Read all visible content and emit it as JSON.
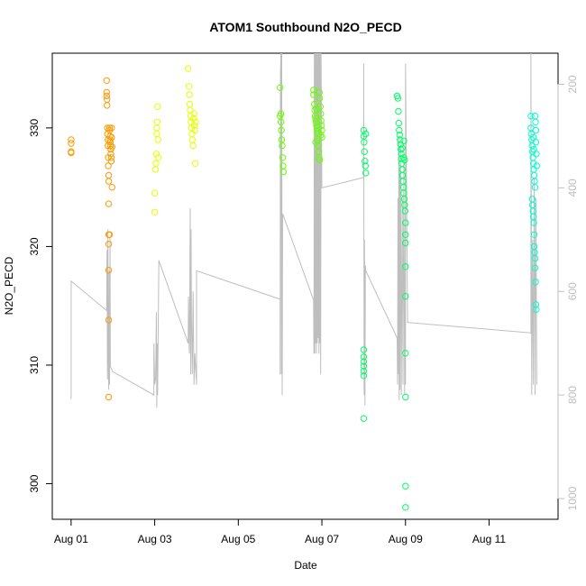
{
  "chart_data": {
    "type": "scatter",
    "title": "ATOM1 Southbound N2O_PECD",
    "xlabel": "Date",
    "ylabel": "N2O_PECD",
    "x_ticks": [
      "Aug 01",
      "Aug 03",
      "Aug 05",
      "Aug 07",
      "Aug 09",
      "Aug 11"
    ],
    "x_tick_days": [
      1,
      3,
      5,
      7,
      9,
      11
    ],
    "xlim_days": [
      0.55,
      12.65
    ],
    "y_ticks": [
      300,
      310,
      320,
      330
    ],
    "ylim": [
      297,
      336.3
    ],
    "y2_ticks": [
      200,
      400,
      600,
      800,
      1000
    ],
    "y2lim": [
      1040,
      140
    ],
    "y2_reversed": true,
    "grid": false,
    "colors": {
      "flight_1": "#ff9900",
      "flight_2": "#e6ff00",
      "flight_3": "#66ff00",
      "flight_4": "#00ff66",
      "flight_5": "#00ffcc",
      "altitude_trace": "#bebebe"
    },
    "series": [
      {
        "key": "flight_1",
        "color": "#ff9900",
        "points": [
          [
            1.0,
            329.0
          ],
          [
            1.0,
            328.7
          ],
          [
            1.0,
            328.0
          ],
          [
            1.0,
            327.9
          ],
          [
            1.85,
            334.0
          ],
          [
            1.85,
            333.0
          ],
          [
            1.85,
            332.7
          ],
          [
            1.86,
            332.4
          ],
          [
            1.86,
            331.9
          ],
          [
            1.87,
            330.0
          ],
          [
            1.87,
            329.5
          ],
          [
            1.88,
            329.0
          ],
          [
            1.88,
            328.5
          ],
          [
            1.89,
            327.5
          ],
          [
            1.89,
            326.8
          ],
          [
            1.9,
            326.0
          ],
          [
            1.9,
            325.5
          ],
          [
            1.9,
            323.6
          ],
          [
            1.9,
            321.0
          ],
          [
            1.9,
            320.2
          ],
          [
            1.9,
            318.0
          ],
          [
            1.9,
            313.8
          ],
          [
            1.9,
            307.3
          ],
          [
            1.92,
            330.0
          ],
          [
            1.92,
            329.8
          ],
          [
            1.93,
            329.3
          ],
          [
            1.93,
            329.0
          ],
          [
            1.94,
            328.8
          ],
          [
            1.94,
            328.5
          ],
          [
            1.95,
            328.2
          ],
          [
            1.95,
            327.8
          ],
          [
            1.96,
            327.5
          ],
          [
            1.96,
            327.2
          ],
          [
            1.97,
            330.0
          ],
          [
            1.97,
            329.2
          ],
          [
            1.98,
            328.4
          ],
          [
            1.98,
            325.0
          ],
          [
            1.92,
            321.0
          ]
        ]
      },
      {
        "key": "flight_2",
        "color": "#e6ff00",
        "points": [
          [
            3.0,
            322.9
          ],
          [
            3.0,
            324.5
          ],
          [
            3.02,
            326.5
          ],
          [
            3.03,
            327.0
          ],
          [
            3.04,
            327.8
          ],
          [
            3.05,
            329.5
          ],
          [
            3.05,
            330.0
          ],
          [
            3.06,
            330.5
          ],
          [
            3.07,
            331.8
          ],
          [
            3.08,
            327.5
          ],
          [
            3.08,
            329.0
          ],
          [
            3.8,
            335.0
          ],
          [
            3.82,
            333.5
          ],
          [
            3.83,
            332.8
          ],
          [
            3.84,
            332.0
          ],
          [
            3.85,
            331.5
          ],
          [
            3.86,
            331.0
          ],
          [
            3.87,
            330.5
          ],
          [
            3.88,
            330.0
          ],
          [
            3.89,
            329.5
          ],
          [
            3.9,
            329.0
          ],
          [
            3.92,
            328.5
          ],
          [
            3.93,
            330.8
          ],
          [
            3.94,
            331.2
          ],
          [
            3.95,
            330.2
          ],
          [
            3.96,
            329.8
          ],
          [
            3.97,
            327.0
          ],
          [
            3.98,
            330.5
          ]
        ]
      },
      {
        "key": "flight_3",
        "color": "#66ff00",
        "points": [
          [
            6.0,
            333.4
          ],
          [
            6.0,
            331.0
          ],
          [
            6.02,
            330.5
          ],
          [
            6.03,
            329.8
          ],
          [
            6.04,
            329.0
          ],
          [
            6.05,
            328.5
          ],
          [
            6.06,
            327.5
          ],
          [
            6.07,
            326.8
          ],
          [
            6.08,
            326.3
          ],
          [
            6.02,
            331.2
          ],
          [
            6.8,
            333.2
          ],
          [
            6.8,
            332.8
          ],
          [
            6.82,
            332.0
          ],
          [
            6.83,
            331.5
          ],
          [
            6.84,
            331.0
          ],
          [
            6.85,
            330.8
          ],
          [
            6.86,
            330.5
          ],
          [
            6.87,
            330.2
          ],
          [
            6.88,
            330.0
          ],
          [
            6.89,
            329.7
          ],
          [
            6.9,
            329.5
          ],
          [
            6.9,
            329.0
          ],
          [
            6.91,
            328.5
          ],
          [
            6.92,
            328.0
          ],
          [
            6.93,
            327.5
          ],
          [
            6.94,
            333.0
          ],
          [
            6.95,
            332.5
          ],
          [
            6.96,
            331.8
          ],
          [
            6.97,
            331.2
          ],
          [
            6.98,
            330.6
          ],
          [
            6.99,
            330.2
          ],
          [
            7.0,
            329.8
          ],
          [
            7.0,
            329.2
          ],
          [
            6.85,
            328.8
          ],
          [
            6.87,
            331.6
          ],
          [
            6.95,
            327.3
          ],
          [
            6.97,
            329.4
          ]
        ]
      },
      {
        "key": "flight_4",
        "color": "#00ff66",
        "points": [
          [
            8.0,
            329.8
          ],
          [
            8.0,
            329.3
          ],
          [
            8.01,
            328.8
          ],
          [
            8.02,
            328.0
          ],
          [
            8.03,
            327.2
          ],
          [
            8.04,
            326.8
          ],
          [
            8.05,
            326.2
          ],
          [
            8.0,
            311.3
          ],
          [
            8.0,
            310.7
          ],
          [
            8.0,
            310.3
          ],
          [
            8.0,
            309.9
          ],
          [
            8.0,
            309.5
          ],
          [
            8.0,
            309.1
          ],
          [
            8.0,
            305.5
          ],
          [
            8.05,
            329.5
          ],
          [
            8.8,
            332.7
          ],
          [
            8.82,
            332.5
          ],
          [
            8.83,
            331.4
          ],
          [
            8.84,
            330.4
          ],
          [
            8.85,
            329.8
          ],
          [
            8.86,
            329.4
          ],
          [
            8.87,
            329.0
          ],
          [
            8.88,
            328.6
          ],
          [
            8.89,
            328.2
          ],
          [
            8.9,
            327.8
          ],
          [
            8.9,
            327.4
          ],
          [
            8.91,
            327.0
          ],
          [
            8.92,
            326.5
          ],
          [
            8.93,
            326.0
          ],
          [
            8.94,
            325.5
          ],
          [
            8.95,
            325.0
          ],
          [
            8.96,
            324.5
          ],
          [
            8.97,
            324.0
          ],
          [
            8.98,
            323.5
          ],
          [
            8.99,
            323.0
          ],
          [
            9.0,
            322.0
          ],
          [
            9.0,
            321.0
          ],
          [
            9.0,
            320.3
          ],
          [
            9.0,
            318.3
          ],
          [
            9.0,
            315.8
          ],
          [
            9.0,
            311.0
          ],
          [
            9.0,
            307.3
          ],
          [
            9.0,
            299.8
          ],
          [
            9.0,
            298.0
          ],
          [
            8.95,
            327.5
          ],
          [
            8.98,
            327.3
          ],
          [
            8.92,
            328.3
          ],
          [
            8.96,
            328.9
          ]
        ]
      },
      {
        "key": "flight_5",
        "color": "#00ffcc",
        "points": [
          [
            12.0,
            331.0
          ],
          [
            12.0,
            330.0
          ],
          [
            12.01,
            329.5
          ],
          [
            12.02,
            329.0
          ],
          [
            12.03,
            328.5
          ],
          [
            12.04,
            328.0
          ],
          [
            12.05,
            327.5
          ],
          [
            12.06,
            327.0
          ],
          [
            12.07,
            326.5
          ],
          [
            12.08,
            326.0
          ],
          [
            12.09,
            325.5
          ],
          [
            12.1,
            325.0
          ],
          [
            12.1,
            331.0
          ],
          [
            12.11,
            330.5
          ],
          [
            12.12,
            329.8
          ],
          [
            12.12,
            328.8
          ],
          [
            12.13,
            327.8
          ],
          [
            12.14,
            326.8
          ],
          [
            12.03,
            324.0
          ],
          [
            12.04,
            323.5
          ],
          [
            12.05,
            323.0
          ],
          [
            12.06,
            322.5
          ],
          [
            12.07,
            322.0
          ],
          [
            12.08,
            321.0
          ],
          [
            12.08,
            320.0
          ],
          [
            12.09,
            319.5
          ],
          [
            12.1,
            319.0
          ],
          [
            12.1,
            318.2
          ],
          [
            12.11,
            317.0
          ],
          [
            12.12,
            315.1
          ],
          [
            12.13,
            314.7
          ],
          [
            12.06,
            329.2
          ],
          [
            12.07,
            328.2
          ]
        ]
      }
    ],
    "altitude_trace": [
      [
        1.0,
        808
      ],
      [
        1.0,
        580
      ],
      [
        1.85,
        637
      ],
      [
        1.86,
        520
      ],
      [
        1.87,
        770
      ],
      [
        1.88,
        480
      ],
      [
        1.89,
        720
      ],
      [
        1.9,
        790
      ],
      [
        1.91,
        560
      ],
      [
        1.92,
        780
      ],
      [
        1.93,
        495
      ],
      [
        1.94,
        745
      ],
      [
        2.0,
        755
      ],
      [
        2.98,
        800
      ],
      [
        2.98,
        700
      ],
      [
        3.0,
        780
      ],
      [
        3.02,
        770
      ],
      [
        3.03,
        720
      ],
      [
        3.04,
        640
      ],
      [
        3.05,
        825
      ],
      [
        3.06,
        700
      ],
      [
        3.07,
        800
      ],
      [
        3.1,
        540
      ],
      [
        3.8,
        700
      ],
      [
        3.81,
        610
      ],
      [
        3.82,
        690
      ],
      [
        3.83,
        720
      ],
      [
        3.84,
        620
      ],
      [
        3.85,
        440
      ],
      [
        3.86,
        760
      ],
      [
        3.87,
        480
      ],
      [
        3.88,
        650
      ],
      [
        3.9,
        760
      ],
      [
        3.92,
        600
      ],
      [
        3.94,
        780
      ],
      [
        3.96,
        720
      ],
      [
        4.0,
        780
      ],
      [
        4.0,
        560
      ],
      [
        6.0,
        615
      ],
      [
        6.0,
        760
      ],
      [
        6.01,
        180
      ],
      [
        6.02,
        140
      ],
      [
        6.03,
        760
      ],
      [
        6.04,
        140
      ],
      [
        6.05,
        800
      ],
      [
        6.06,
        450
      ],
      [
        6.8,
        617
      ],
      [
        6.81,
        720
      ],
      [
        6.82,
        140
      ],
      [
        6.83,
        720
      ],
      [
        6.84,
        140
      ],
      [
        6.85,
        700
      ],
      [
        6.86,
        140
      ],
      [
        6.87,
        720
      ],
      [
        6.88,
        140
      ],
      [
        6.89,
        700
      ],
      [
        6.9,
        140
      ],
      [
        6.91,
        690
      ],
      [
        6.92,
        140
      ],
      [
        6.93,
        720
      ],
      [
        6.94,
        140
      ],
      [
        6.95,
        700
      ],
      [
        6.96,
        140
      ],
      [
        6.97,
        760
      ],
      [
        6.98,
        140
      ],
      [
        7.0,
        400
      ],
      [
        8.0,
        380
      ],
      [
        8.0,
        160
      ],
      [
        8.01,
        800
      ],
      [
        8.02,
        500
      ],
      [
        8.03,
        820
      ],
      [
        8.04,
        550
      ],
      [
        8.05,
        560
      ],
      [
        8.8,
        690
      ],
      [
        8.81,
        780
      ],
      [
        8.82,
        420
      ],
      [
        8.83,
        760
      ],
      [
        8.84,
        300
      ],
      [
        8.85,
        810
      ],
      [
        8.86,
        370
      ],
      [
        8.87,
        790
      ],
      [
        8.88,
        320
      ],
      [
        8.9,
        800
      ],
      [
        8.92,
        420
      ],
      [
        8.94,
        780
      ],
      [
        8.96,
        350
      ],
      [
        8.98,
        800
      ],
      [
        9.0,
        380
      ],
      [
        9.0,
        780
      ],
      [
        9.0,
        160
      ],
      [
        9.05,
        660
      ],
      [
        12.0,
        680
      ],
      [
        12.0,
        140
      ],
      [
        12.02,
        800
      ],
      [
        12.04,
        500
      ],
      [
        12.06,
        780
      ],
      [
        12.08,
        380
      ],
      [
        12.1,
        800
      ],
      [
        12.12,
        420
      ],
      [
        12.14,
        780
      ]
    ]
  }
}
